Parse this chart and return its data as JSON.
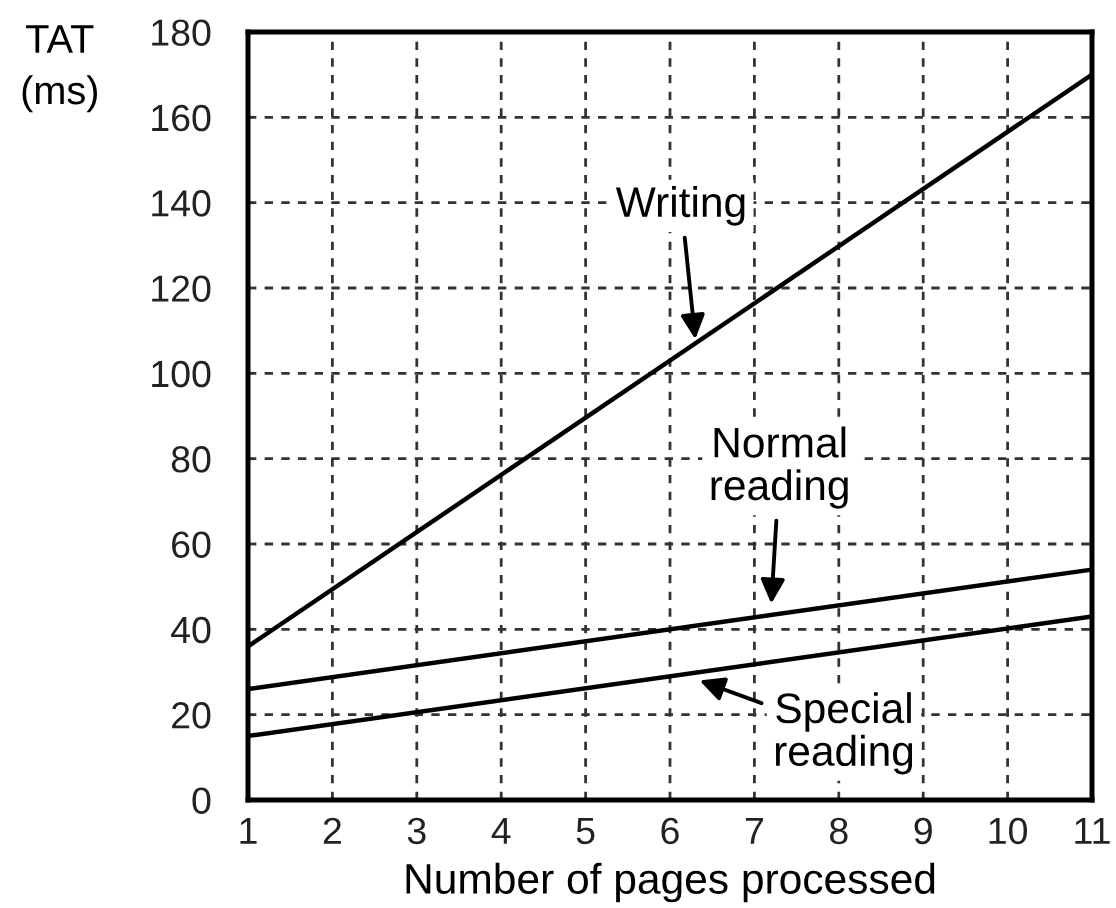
{
  "chart_data": {
    "type": "line",
    "xlabel": "Number of pages processed",
    "ylabel": "TAT\n(ms)",
    "x": [
      1,
      11
    ],
    "series": [
      {
        "color": "#000000",
        "values": [
          36,
          170
        ]
      },
      {
        "color": "#000000",
        "values": [
          26,
          54
        ]
      },
      {
        "color": "#000000",
        "values": [
          15,
          43
        ]
      }
    ],
    "annotations": [
      {
        "text": "Writing",
        "x": 6.3,
        "y": 108
      },
      {
        "text": "Normal\nreading",
        "x": 7.2,
        "y": 46
      },
      {
        "text": "Special\nreading",
        "x": 6.35,
        "y": 28
      }
    ],
    "xlim": [
      1,
      11
    ],
    "ylim": [
      0,
      180
    ],
    "xticks": [
      1,
      2,
      3,
      4,
      5,
      6,
      7,
      8,
      9,
      10,
      11
    ],
    "yticks": [
      0,
      20,
      40,
      60,
      80,
      100,
      120,
      140,
      160,
      180
    ],
    "grid": true,
    "marker": "none",
    "line_style": "solid"
  }
}
